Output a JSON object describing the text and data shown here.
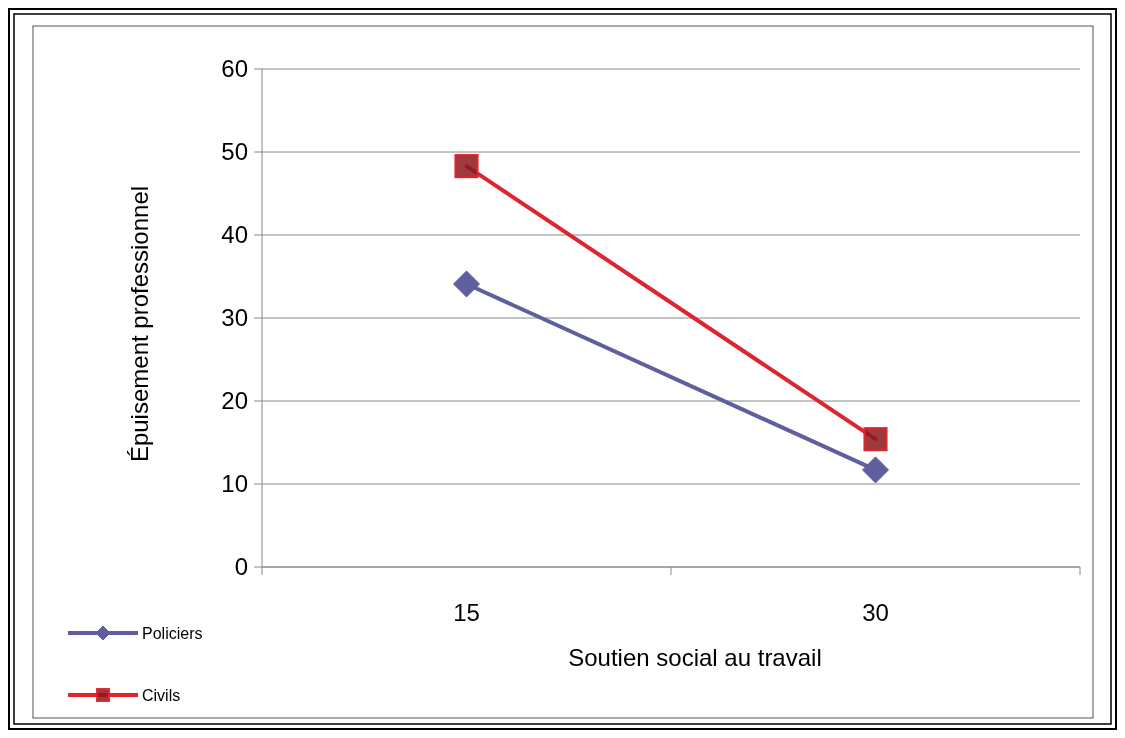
{
  "chart_data": {
    "type": "line",
    "xlabel": "Soutien social au travail",
    "ylabel": "Épuisement professionnel",
    "categories": [
      "15",
      "30"
    ],
    "series": [
      {
        "name": "Policiers",
        "color": "#5f5f9f",
        "marker": "diamond",
        "values": [
          34.1,
          11.7
        ]
      },
      {
        "name": "Civils",
        "color": "#e0242c",
        "marker": "square",
        "values": [
          48.3,
          15.4
        ]
      }
    ],
    "ylim": [
      0,
      60
    ],
    "yticks": [
      0,
      10,
      20,
      30,
      40,
      50,
      60
    ],
    "grid": "y",
    "legend": "bottom left"
  }
}
